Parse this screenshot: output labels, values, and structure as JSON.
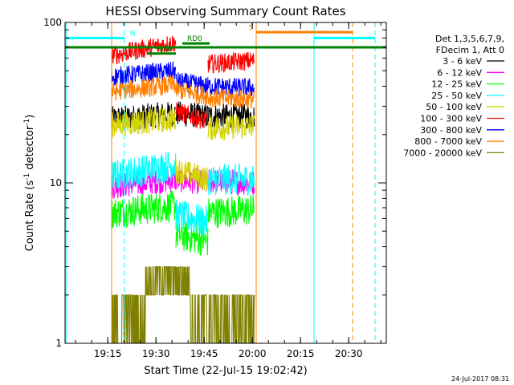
{
  "chart_data": {
    "type": "line",
    "title": "HESSI Observing Summary Count Rates",
    "xlabel": "Start Time (22-Jul-15 19:02:42)",
    "ylabel_main": "Count Rate (s",
    "ylabel_sup": "-1",
    "ylabel_rest": " detector",
    "ylabel_end": ")",
    "y_scale": "log",
    "ylim": [
      1,
      100
    ],
    "x_start_min": 0,
    "x_end_min": 100,
    "x_ticks": [
      {
        "min": 13.3,
        "label": "19:15"
      },
      {
        "min": 28.3,
        "label": "19:30"
      },
      {
        "min": 43.3,
        "label": "19:45"
      },
      {
        "min": 58.3,
        "label": "20:00"
      },
      {
        "min": 73.3,
        "label": "20:15"
      },
      {
        "min": 88.3,
        "label": "20:30"
      }
    ],
    "y_ticks": [
      {
        "value": 1,
        "label": "1"
      },
      {
        "value": 10,
        "label": "10"
      },
      {
        "value": 100,
        "label": "100"
      }
    ],
    "legend": {
      "placement": "right",
      "header": [
        "Det 1,3,5,6,7,9,",
        "FDecim 1, Att 0"
      ],
      "entries": [
        {
          "label": "3 - 6 keV",
          "color": "#000000"
        },
        {
          "label": "6 - 12 keV",
          "color": "#ff00ff"
        },
        {
          "label": "12 - 25 keV",
          "color": "#00ff00"
        },
        {
          "label": "25 - 50 keV",
          "color": "#00ffff"
        },
        {
          "label": "50 - 100 keV",
          "color": "#d4d400"
        },
        {
          "label": "100 - 300 keV",
          "color": "#ff0000"
        },
        {
          "label": "300 - 800 keV",
          "color": "#0000ff"
        },
        {
          "label": "800 - 7000 keV",
          "color": "#ff8000"
        },
        {
          "label": "7000 - 20000 keV",
          "color": "#808000"
        }
      ]
    },
    "series": [
      {
        "name": "3 - 6 keV",
        "color": "#000000",
        "noise": 0.08,
        "segments": [
          [
            14.5,
            34.5,
            [
              [
                14.5,
                25
              ],
              [
                34.5,
                27
              ]
            ]
          ],
          [
            34.5,
            44.5,
            [
              [
                34.5,
                27
              ],
              [
                44.5,
                26
              ]
            ]
          ],
          [
            44.5,
            59,
            [
              [
                44.5,
                26
              ],
              [
                59,
                26
              ]
            ]
          ]
        ]
      },
      {
        "name": "6 - 12 keV",
        "color": "#ff00ff",
        "noise": 0.08,
        "segments": [
          [
            14.5,
            34.5,
            [
              [
                14.5,
                9.5
              ],
              [
                34.5,
                10.5
              ]
            ]
          ],
          [
            34.5,
            44.5,
            [
              [
                34.5,
                10.5
              ],
              [
                44.5,
                10
              ]
            ]
          ],
          [
            44.5,
            59,
            [
              [
                44.5,
                10.3
              ],
              [
                59,
                10
              ]
            ]
          ]
        ]
      },
      {
        "name": "12 - 25 keV",
        "color": "#00ff00",
        "noise": 0.1,
        "segments": [
          [
            14.5,
            34.5,
            [
              [
                14.5,
                6.5
              ],
              [
                34.5,
                7.2
              ]
            ]
          ],
          [
            34.5,
            44.5,
            [
              [
                34.5,
                4.8
              ],
              [
                44.5,
                4.3
              ]
            ]
          ],
          [
            44.5,
            59,
            [
              [
                44.5,
                6.5
              ],
              [
                59,
                6.8
              ]
            ]
          ]
        ]
      },
      {
        "name": "25 - 50 keV",
        "color": "#00ffff",
        "noise": 0.1,
        "segments": [
          [
            14.5,
            34.5,
            [
              [
                14.5,
                11
              ],
              [
                34.5,
                13
              ]
            ]
          ],
          [
            34.5,
            44.5,
            [
              [
                34.5,
                6.3
              ],
              [
                44.5,
                5.7
              ]
            ]
          ],
          [
            44.5,
            59,
            [
              [
                44.5,
                10.5
              ],
              [
                59,
                10.5
              ]
            ]
          ]
        ]
      },
      {
        "name": "50 - 100 keV",
        "color": "#d4d400",
        "noise": 0.08,
        "segments": [
          [
            14.5,
            34.5,
            [
              [
                14.5,
                23
              ],
              [
                34.5,
                25
              ]
            ]
          ],
          [
            34.5,
            44.5,
            [
              [
                34.5,
                12
              ],
              [
                44.5,
                10.5
              ]
            ]
          ],
          [
            44.5,
            59,
            [
              [
                44.5,
                22
              ],
              [
                59,
                22.5
              ]
            ]
          ]
        ]
      },
      {
        "name": "100 - 300 keV",
        "color": "#ff0000",
        "noise": 0.06,
        "segments": [
          [
            14.5,
            34.5,
            [
              [
                14.5,
                62
              ],
              [
                34.5,
                75
              ]
            ]
          ],
          [
            34.5,
            44.5,
            [
              [
                34.5,
                28
              ],
              [
                44.5,
                24
              ]
            ]
          ],
          [
            44.5,
            59,
            [
              [
                44.5,
                55
              ],
              [
                59,
                58
              ]
            ]
          ]
        ]
      },
      {
        "name": "300 - 800 keV",
        "color": "#0000ff",
        "noise": 0.06,
        "segments": [
          [
            14.5,
            34.5,
            [
              [
                14.5,
                46
              ],
              [
                34.5,
                50
              ]
            ]
          ],
          [
            34.5,
            44.5,
            [
              [
                34.5,
                43
              ],
              [
                44.5,
                40
              ]
            ]
          ],
          [
            44.5,
            59,
            [
              [
                44.5,
                40
              ],
              [
                59,
                39
              ]
            ]
          ]
        ]
      },
      {
        "name": "800 - 7000 keV",
        "color": "#ff8000",
        "noise": 0.06,
        "segments": [
          [
            14.5,
            34.5,
            [
              [
                14.5,
                37
              ],
              [
                34.5,
                41
              ]
            ]
          ],
          [
            34.5,
            44.5,
            [
              [
                34.5,
                38
              ],
              [
                44.5,
                35
              ]
            ]
          ],
          [
            44.5,
            59,
            [
              [
                44.5,
                34
              ],
              [
                59,
                33
              ]
            ]
          ]
        ]
      },
      {
        "name": "7000 - 20000 keV",
        "color": "#808000",
        "quantized": true,
        "segments": [
          [
            14.5,
            59,
            [
              [
                14.5,
                1.5
              ],
              [
                59,
                1.5
              ]
            ]
          ]
        ],
        "plateaus": [
          [
            25,
            39,
            2,
            3
          ]
        ]
      }
    ],
    "annotations": {
      "vertical_lines": [
        {
          "min": 14.5,
          "color": "#ff8000",
          "style": "solid"
        },
        {
          "min": 18.5,
          "color": "#00ffff",
          "style": "dashed"
        },
        {
          "min": 59.5,
          "color": "#ff8000",
          "style": "solid"
        },
        {
          "min": 77.5,
          "color": "#00ffff",
          "style": "solid"
        },
        {
          "min": 89.5,
          "color": "#ff8000",
          "style": "dashed"
        },
        {
          "min": 96.5,
          "color": "#00ffff",
          "style": "dashed"
        },
        {
          "min": 0.3,
          "color": "#00ffff",
          "style": "solid"
        }
      ],
      "bars": [
        {
          "label": "N",
          "color": "#00ffff",
          "segments": [
            [
              0.3,
              18.5
            ],
            [
              77.5,
              96.5
            ]
          ],
          "y": 80,
          "label_min": 20.2
        },
        {
          "label": "S",
          "color": "#ff8000",
          "segments": [
            [
              59.5,
              89.5
            ]
          ],
          "y": 87,
          "label_min": 57.2
        },
        {
          "label": "",
          "color": "#008000",
          "segments": [
            [
              0,
              100
            ]
          ],
          "y": 70
        },
        {
          "label": "RD6",
          "color": "#008000",
          "segments": [
            [
              25.5,
              34.5
            ]
          ],
          "y": 64,
          "label_min": 28.5
        },
        {
          "label": "RD0",
          "color": "#008000",
          "segments": [
            [
              36.5,
              45
            ]
          ],
          "y": 74,
          "label_min": 38
        }
      ]
    },
    "footer_date": "24-Jul-2017 08:31"
  }
}
